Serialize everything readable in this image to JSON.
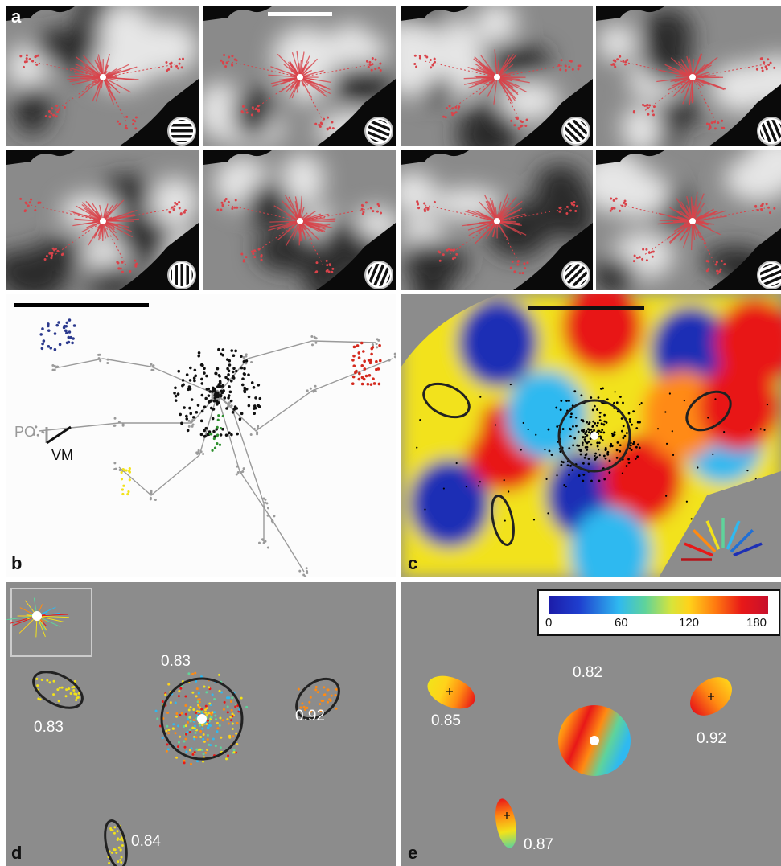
{
  "panels": {
    "a": {
      "label": "a"
    },
    "b": {
      "label": "b",
      "axis_po": "PO",
      "axis_vm": "VM",
      "colors": {
        "blue": "#2c3a8e",
        "red": "#d42a1e",
        "yellow": "#f2e21a",
        "green": "#2d8f2d",
        "black": "#111111",
        "gray": "#9a9a9a"
      }
    },
    "c": {
      "label": "c"
    },
    "d": {
      "label": "d",
      "values": [
        "0.83",
        "0.83",
        "0.92",
        "0.84"
      ]
    },
    "e": {
      "label": "e",
      "values": [
        "0.82",
        "0.85",
        "0.92",
        "0.87"
      ],
      "colorbar": {
        "ticks": [
          "0",
          "60",
          "120",
          "180"
        ]
      }
    }
  },
  "colors": {
    "neuron": "#d9434a",
    "map_background": "#8c8c8c"
  }
}
